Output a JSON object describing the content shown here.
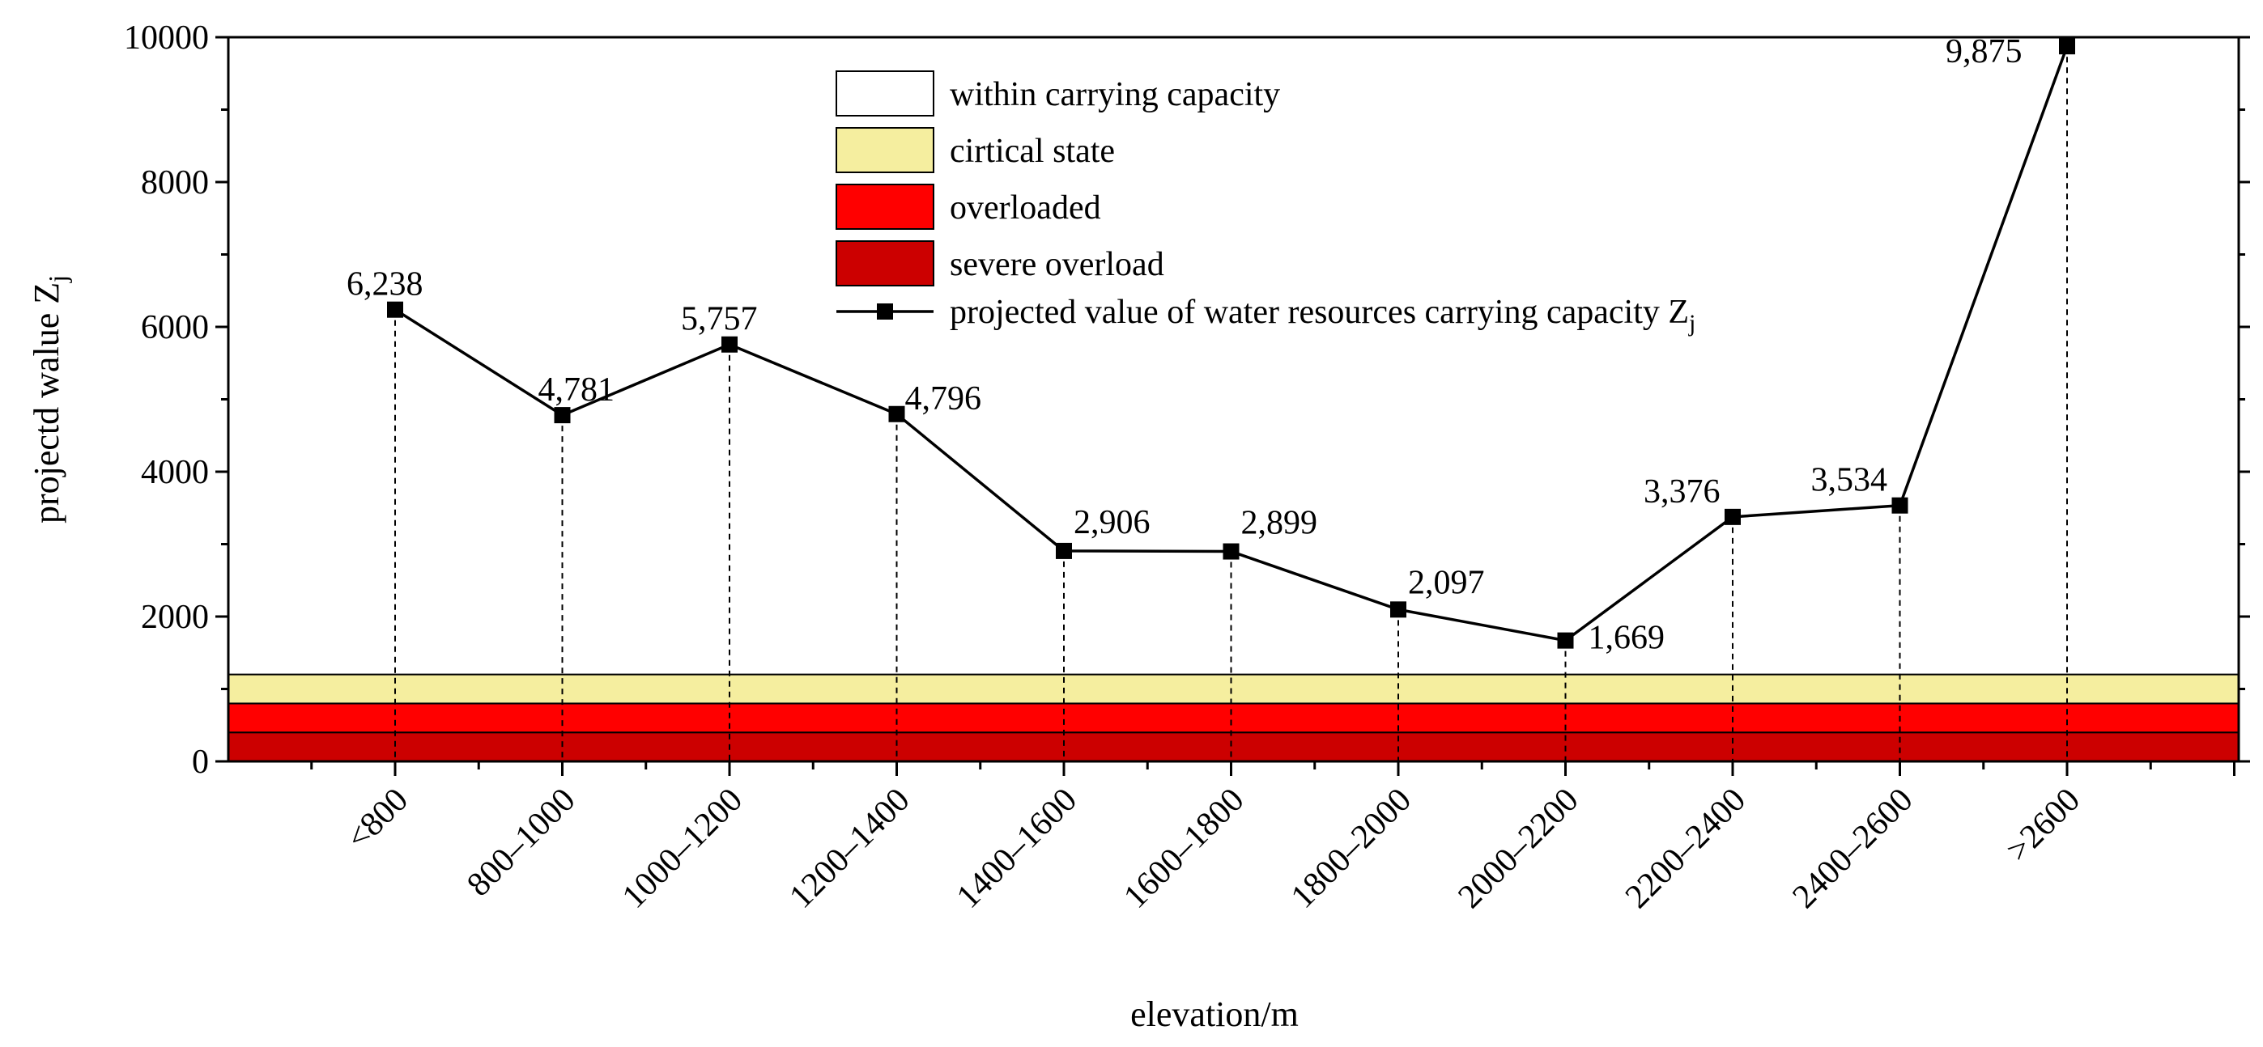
{
  "chart_data": {
    "type": "line",
    "ylabel": "projectd walue",
    "ylabel_sub": "j",
    "ylabel_var": "Z",
    "xlabel": "elevation/m",
    "ylim": [
      0,
      10000
    ],
    "yticks": [
      0,
      2000,
      4000,
      6000,
      8000,
      10000
    ],
    "ytick_labels": [
      "0",
      "2000",
      "4000",
      "6000",
      "8000",
      "10000"
    ],
    "categories": [
      "<800",
      "800–1000",
      "1000–1200",
      "1200–1400",
      "1400–1600",
      "1600–1800",
      "1800–2000",
      "2000–2200",
      "2200–2400",
      "2400–2600",
      ">2600"
    ],
    "series": [
      {
        "name": "projected value of water resources carrying capacity Z",
        "name_sub": "j",
        "values": [
          6238,
          4781,
          5757,
          4796,
          2906,
          2899,
          2097,
          1669,
          3376,
          3534,
          9875
        ],
        "data_labels": [
          "6,238",
          "4,781",
          "5,757",
          "4,796",
          "2,906",
          "2,899",
          "2,097",
          "1,669",
          "3,376",
          "3,534",
          "9,875"
        ],
        "color": "#000000"
      }
    ],
    "bands": [
      {
        "name": "severe overload",
        "from": 0,
        "to": 400,
        "color": "#cc0000"
      },
      {
        "name": "overloaded",
        "from": 400,
        "to": 800,
        "color": "#ff0000"
      },
      {
        "name": "cirtical state",
        "from": 800,
        "to": 1200,
        "color": "#f5ee9f"
      },
      {
        "name": "within carrying capacity",
        "from": 1200,
        "to": 10000,
        "color": "#ffffff"
      }
    ],
    "legend": {
      "placement": "top-center",
      "entries": [
        "within carrying capacity",
        "cirtical state",
        "overloaded",
        "severe overload",
        "projected value of water resources carrying capacity Z"
      ],
      "last_entry_sub": "j"
    }
  }
}
